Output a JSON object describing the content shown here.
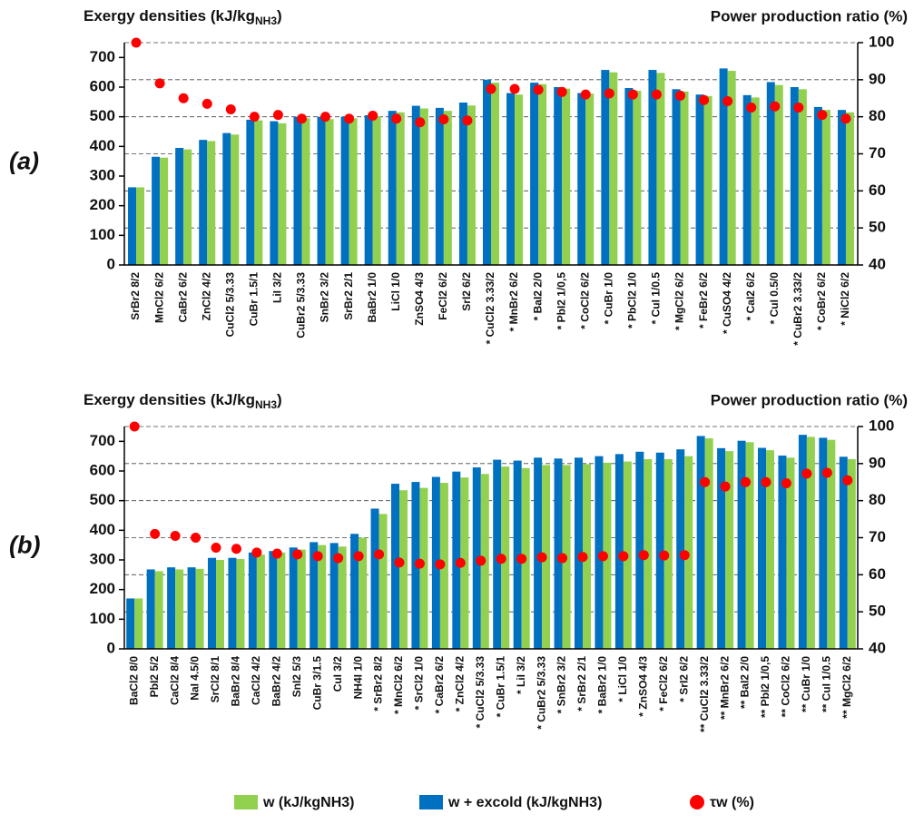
{
  "chart_data": [
    {
      "type": "bar",
      "panel_label": "(a)",
      "ylabel": [
        "Exergy densities (kJ/kg",
        "NH3",
        ")"
      ],
      "y2label": "Power production ratio (%)",
      "categories": [
        "SrBr2  8/2",
        "MnCl2  6/2",
        "CaBr2  6/2",
        "ZnCl2  4/2",
        "CuCl2 5/3.33",
        "CuBr  1.5/1",
        "LiI  3/2",
        "CuBr2 5/3.33",
        "SnBr2  3/2",
        "SrBr2  2/1",
        "BaBr2  1/0",
        "LiCl  1/0",
        "ZnSO4  4/3",
        "FeCl2  6/2",
        "SrI2  6/2",
        "* CuCl2 3.33/2",
        "* MnBr2  6/2",
        "* BaI2  2/0",
        "* PbI2  1/0,5",
        "* CoCl2  6/2",
        "* CuBr  1/0",
        "* PbCl2  1/0",
        "* CuI  1/0.5",
        "* MgCl2  6/2",
        "* FeBr2  6/2",
        "* CuSO4  4/2",
        "* CaI2  6/2",
        "* CuI  0.5/0",
        "* CuBr2 3.33/2",
        "* CoBr2  6/2",
        "* NiCl2  6/2"
      ],
      "series": [
        {
          "name": "w (kJ/kgNH3)",
          "type": "bar",
          "color": "#92d050",
          "values": [
            262,
            362,
            390,
            418,
            440,
            488,
            478,
            495,
            492,
            495,
            502,
            515,
            528,
            520,
            538,
            615,
            575,
            610,
            595,
            578,
            650,
            588,
            648,
            585,
            570,
            655,
            565,
            607,
            593,
            523,
            515
          ]
        },
        {
          "name": "w + excold (kJ/kgNH3)",
          "type": "bar",
          "color": "#0070c0",
          "values": [
            262,
            365,
            395,
            422,
            445,
            490,
            485,
            500,
            500,
            500,
            505,
            520,
            537,
            530,
            548,
            625,
            580,
            615,
            600,
            580,
            658,
            597,
            658,
            593,
            575,
            663,
            573,
            617,
            600,
            533,
            523
          ]
        },
        {
          "name": "τw (%)",
          "type": "scatter",
          "axis": "y2",
          "color": "#ff0000",
          "values": [
            100,
            89,
            85,
            83.5,
            82,
            80,
            80.5,
            79.5,
            80,
            79.5,
            80.3,
            79.5,
            78.5,
            79.3,
            79,
            87.5,
            87.5,
            87.3,
            86.7,
            86,
            86.3,
            86,
            86,
            85.7,
            84.5,
            84.2,
            82.5,
            82.8,
            82.5,
            80.5,
            79.5
          ]
        }
      ],
      "ylim": [
        0,
        750
      ],
      "yticks": [
        0,
        100,
        200,
        300,
        400,
        500,
        600,
        700
      ],
      "y2lim": [
        40,
        100
      ],
      "y2ticks": [
        40,
        50,
        60,
        70,
        80,
        90,
        100
      ],
      "grid": true
    },
    {
      "type": "bar",
      "panel_label": "(b)",
      "ylabel": [
        "Exergy densities (kJ/kg",
        "NH3",
        ")"
      ],
      "y2label": "Power production ratio (%)",
      "categories": [
        "BaCl2  8/0",
        "PbI2  5/2",
        "CaCl2  8/4",
        "NaI  4.5/0",
        "SrCl2  8/1",
        "BaBr2  8/4",
        "CaCl2  4/2",
        "BaBr2  4/2",
        "SnI2  5/3",
        "CuBr  3/1.5",
        "CuI  3/2",
        "NH4I  1/0",
        "* SrBr2  8/2",
        "* MnCl2  6/2",
        "* SrCl2  1/0",
        "* CaBr2  6/2",
        "* ZnCl2  4/2",
        "* CuCl2 5/3.33",
        "* CuBr  1.5/1",
        "* LiI  3/2",
        "* CuBr2 5/3.33",
        "* SnBr2  3/2",
        "* SrBr2  2/1",
        "* BaBr2  1/0",
        "* LiCl  1/0",
        "* ZnSO4  4/3",
        "* FeCl2  6/2",
        "* SrI2  6/2",
        "** CuCl2 3.33/2",
        "** MnBr2  6/2",
        "** BaI2  2/0",
        "** PbI2  1/0,5",
        "** CoCl2  6/2",
        "** CuBr  1/0",
        "** CuI  1/0.5",
        "** MgCl2  6/2"
      ],
      "series": [
        {
          "type": "bar",
          "color": "#92d050",
          "values": [
            170,
            262,
            268,
            270,
            300,
            303,
            318,
            325,
            335,
            350,
            345,
            375,
            455,
            535,
            543,
            560,
            578,
            590,
            615,
            610,
            620,
            620,
            623,
            628,
            632,
            640,
            640,
            650,
            710,
            667,
            697,
            670,
            645,
            715,
            705,
            640
          ]
        },
        {
          "type": "bar",
          "color": "#0070c0",
          "values": [
            170,
            268,
            275,
            275,
            307,
            307,
            325,
            330,
            342,
            360,
            357,
            388,
            473,
            557,
            563,
            580,
            598,
            612,
            638,
            635,
            645,
            642,
            645,
            650,
            657,
            665,
            662,
            673,
            718,
            677,
            702,
            678,
            652,
            722,
            712,
            648
          ]
        },
        {
          "type": "scatter",
          "axis": "y2",
          "color": "#ff0000",
          "values": [
            100,
            71,
            70.5,
            70,
            67.3,
            67,
            66,
            65.7,
            65.5,
            65,
            64.5,
            65,
            65.5,
            63.3,
            63,
            62.8,
            63.2,
            63.8,
            64.3,
            64.3,
            64.7,
            64.5,
            64.8,
            65,
            65,
            65.3,
            65.2,
            65.3,
            85,
            83.8,
            85,
            85,
            84.7,
            87.3,
            87.5,
            85.5
          ]
        }
      ],
      "ylim": [
        0,
        750
      ],
      "yticks": [
        0,
        100,
        200,
        300,
        400,
        500,
        600,
        700
      ],
      "y2lim": [
        40,
        100
      ],
      "y2ticks": [
        40,
        50,
        60,
        70,
        80,
        90,
        100
      ],
      "grid": true
    }
  ]
}
